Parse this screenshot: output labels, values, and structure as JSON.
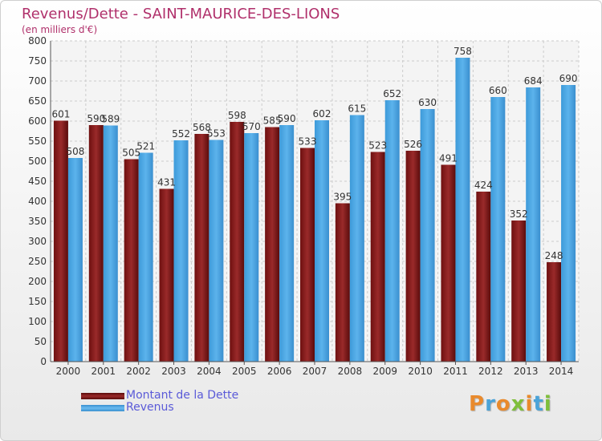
{
  "title": "Revenus/Dette - SAINT-MAURICE-DES-LIONS",
  "subtitle": "(en milliers d'€)",
  "logo": {
    "letters": [
      "P",
      "r",
      "o",
      "x",
      "i",
      "t",
      "i"
    ],
    "colors": [
      "#e98a2c",
      "#4aa3d8",
      "#e98a2c",
      "#7fbf3a",
      "#e98a2c",
      "#4aa3d8",
      "#7fbf3a"
    ]
  },
  "chart_data": {
    "type": "bar",
    "categories": [
      "2000",
      "2001",
      "2002",
      "2003",
      "2004",
      "2005",
      "2006",
      "2007",
      "2008",
      "2009",
      "2010",
      "2011",
      "2012",
      "2013",
      "2014"
    ],
    "series": [
      {
        "name": "Montant de la Dette",
        "values": [
          601,
          590,
          505,
          431,
          568,
          598,
          585,
          533,
          395,
          523,
          526,
          491,
          424,
          352,
          248
        ],
        "color": "#8b1a1a"
      },
      {
        "name": "Revenus",
        "values": [
          508,
          589,
          521,
          552,
          553,
          570,
          590,
          602,
          615,
          652,
          630,
          758,
          660,
          684,
          690
        ],
        "color": "#4aa3e0"
      }
    ],
    "ylim": [
      0,
      800
    ],
    "yticks": [
      0,
      50,
      100,
      150,
      200,
      250,
      300,
      350,
      400,
      450,
      500,
      550,
      600,
      650,
      700,
      750,
      800
    ],
    "grid": true,
    "legend_position": "bottom-left"
  }
}
